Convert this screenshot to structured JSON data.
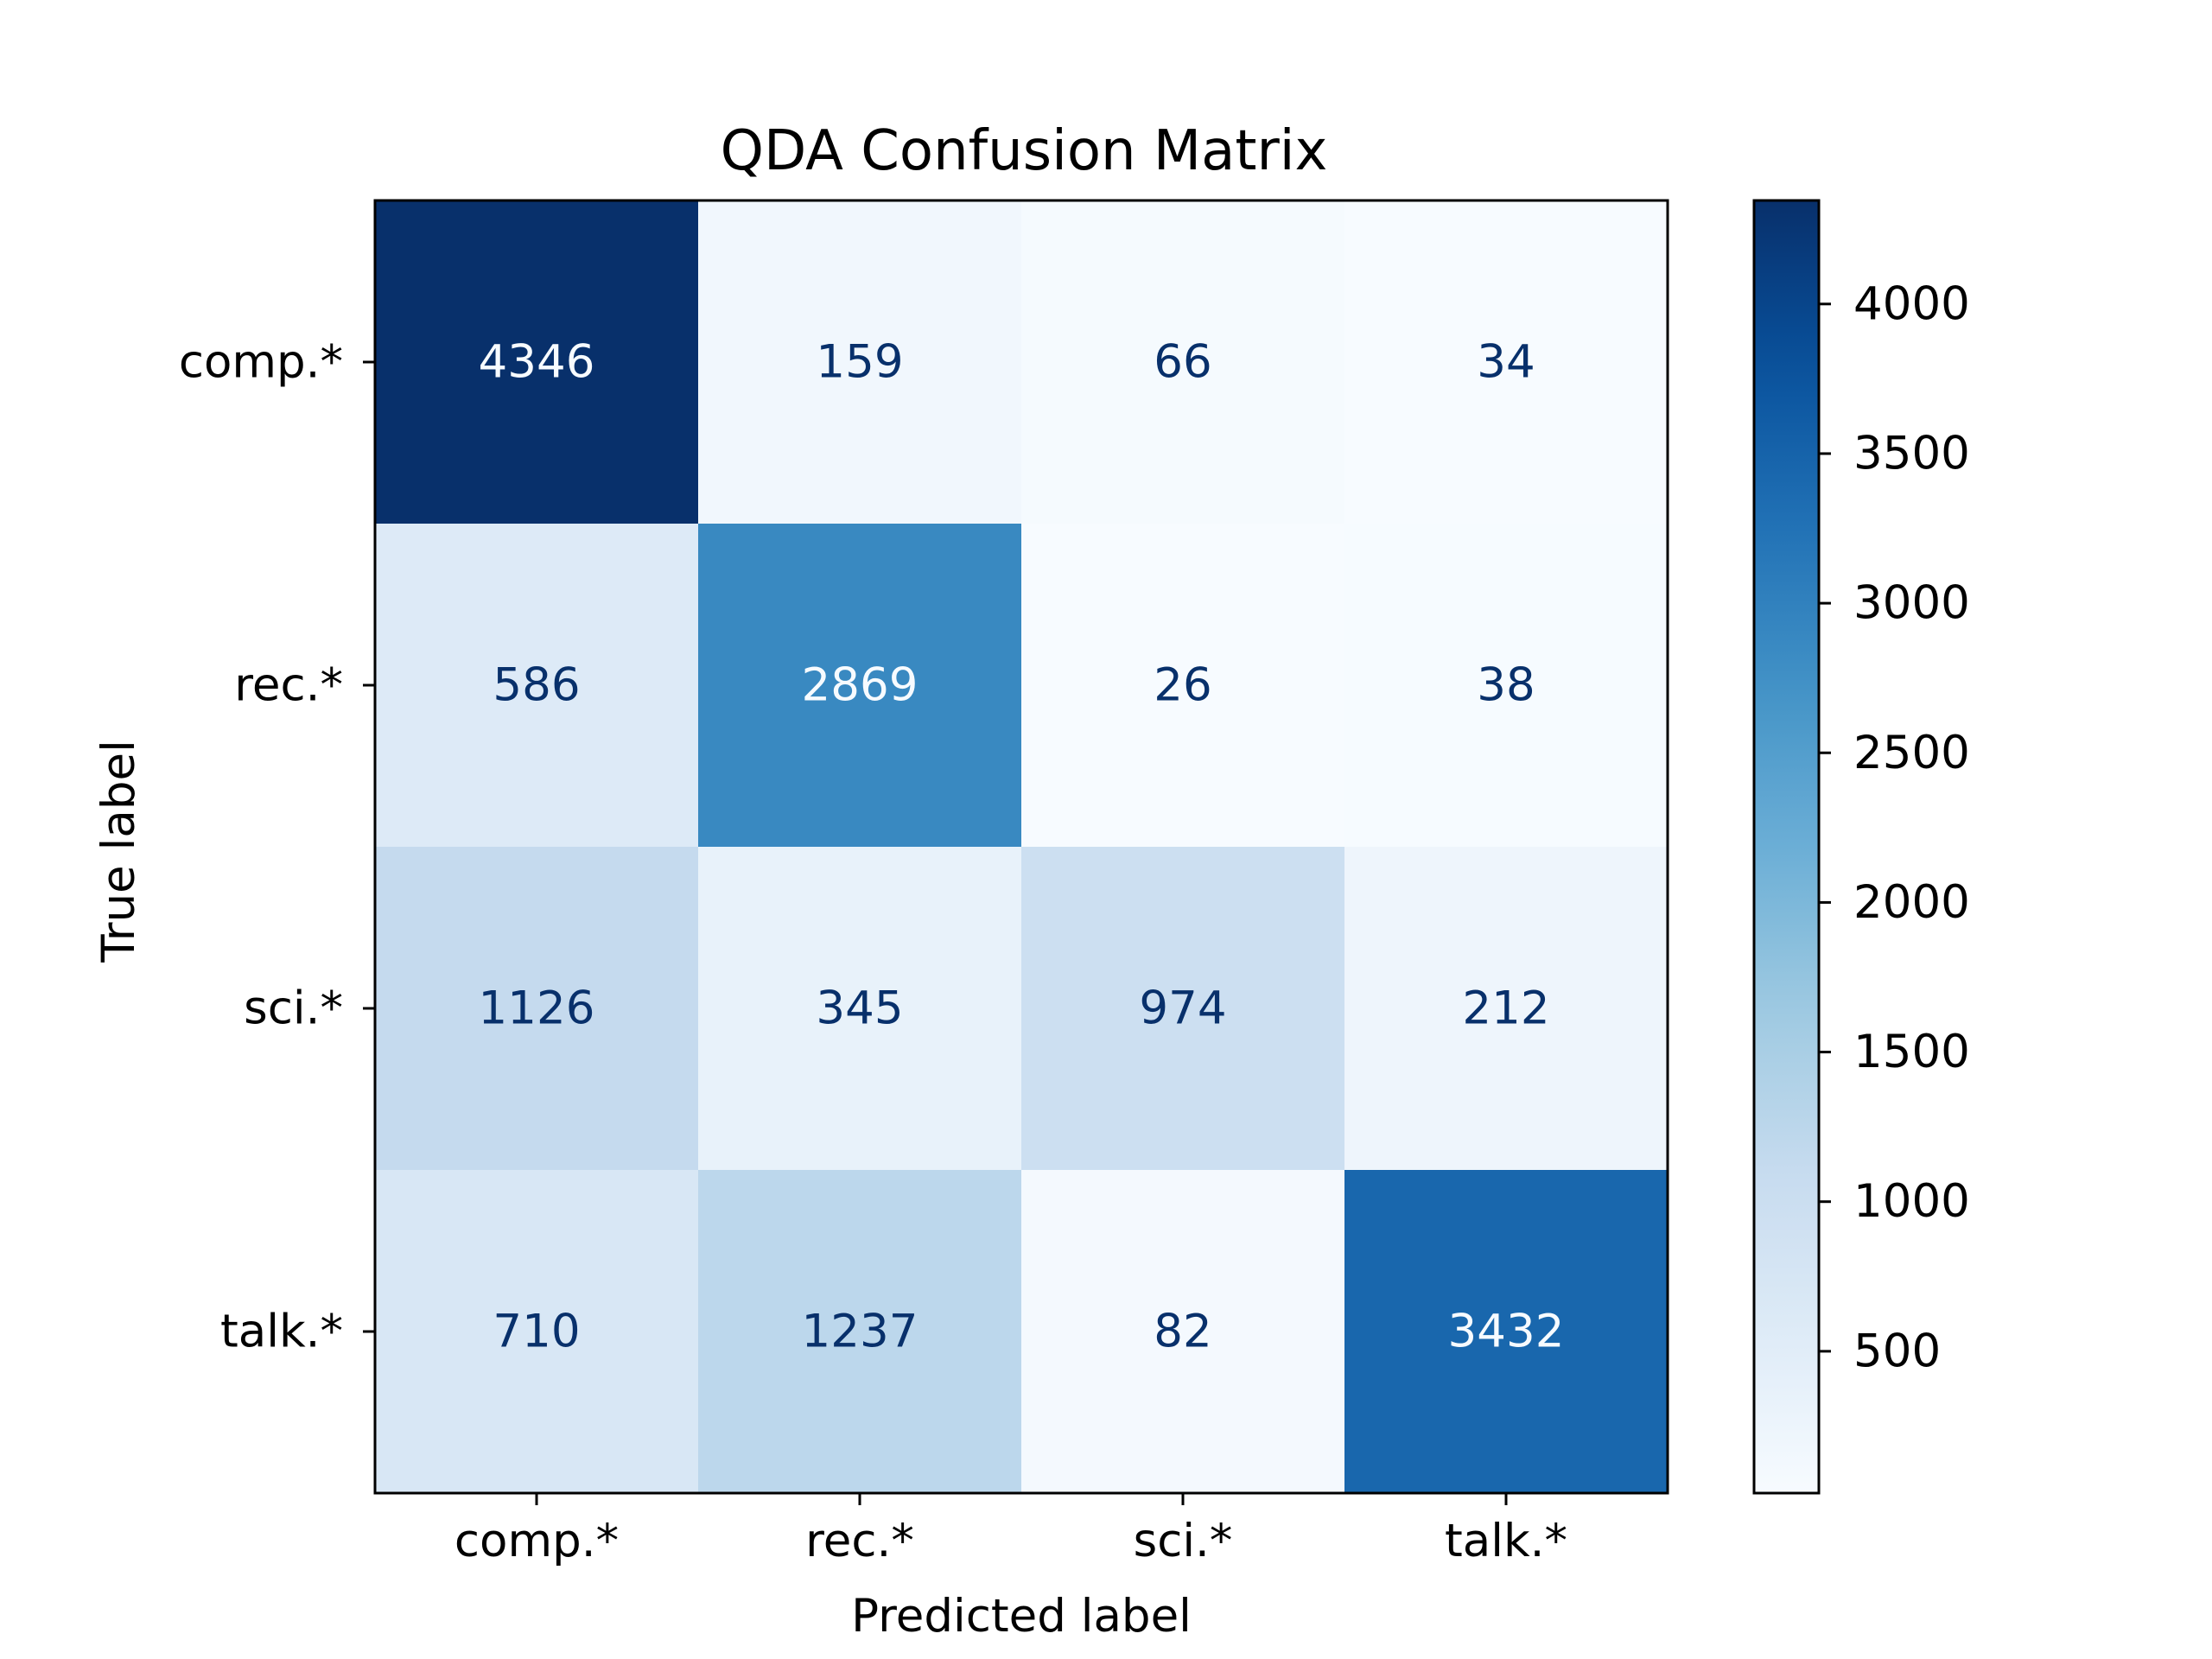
{
  "chart_data": {
    "type": "heatmap",
    "title": "QDA Confusion Matrix",
    "xlabel": "Predicted label",
    "ylabel": "True label",
    "x_categories": [
      "comp.*",
      "rec.*",
      "sci.*",
      "talk.*"
    ],
    "y_categories": [
      "comp.*",
      "rec.*",
      "sci.*",
      "talk.*"
    ],
    "values": [
      [
        4346,
        159,
        66,
        34
      ],
      [
        586,
        2869,
        26,
        38
      ],
      [
        1126,
        345,
        974,
        212
      ],
      [
        710,
        1237,
        82,
        3432
      ]
    ],
    "colormap": "Blues",
    "value_range": [
      26,
      4346
    ],
    "colorbar_ticks": [
      "500",
      "1000",
      "1500",
      "2000",
      "2500",
      "3000",
      "3500",
      "4000"
    ],
    "cell_text_colors": {
      "dark_background": "#f7fbff",
      "light_background": "#08306b"
    },
    "grid": false
  }
}
